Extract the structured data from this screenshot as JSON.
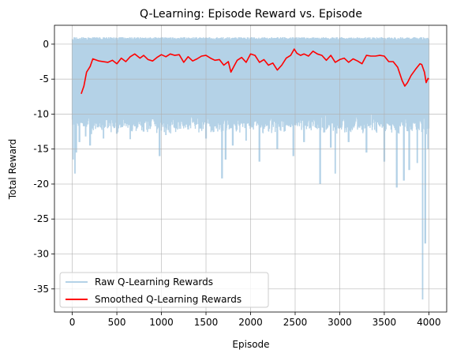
{
  "chart_data": {
    "type": "line",
    "title": "Q-Learning: Episode Reward vs. Episode",
    "xlabel": "Episode",
    "ylabel": "Total Reward",
    "xlim": [
      -200,
      4200
    ],
    "ylim": [
      -38.3,
      2.7
    ],
    "xticks": [
      0,
      500,
      1000,
      1500,
      2000,
      2500,
      3000,
      3500,
      4000
    ],
    "yticks": [
      0,
      -5,
      -10,
      -15,
      -20,
      -25,
      -30,
      -35
    ],
    "grid": true,
    "legend_position": "lower-left",
    "colors": {
      "raw": "#b4d2e7",
      "smoothed": "#ff0000",
      "grid": "#b0b0b0"
    },
    "series": [
      {
        "name": "Raw Q-Learning Rewards",
        "style": "band",
        "upper": 1.0,
        "lower_typical": -11.0,
        "spikes": [
          [
            10,
            -16.5
          ],
          [
            30,
            -18.5
          ],
          [
            45,
            -15.5
          ],
          [
            80,
            -14.0
          ],
          [
            150,
            -13.2
          ],
          [
            200,
            -14.5
          ],
          [
            350,
            -13.5
          ],
          [
            500,
            -12.8
          ],
          [
            650,
            -13.6
          ],
          [
            800,
            -12.5
          ],
          [
            980,
            -16.0
          ],
          [
            1050,
            -13.0
          ],
          [
            1300,
            -12.2
          ],
          [
            1500,
            -13.5
          ],
          [
            1680,
            -19.2
          ],
          [
            1720,
            -16.5
          ],
          [
            1800,
            -14.5
          ],
          [
            1950,
            -13.8
          ],
          [
            2100,
            -16.8
          ],
          [
            2300,
            -15.0
          ],
          [
            2480,
            -16.0
          ],
          [
            2600,
            -14.0
          ],
          [
            2780,
            -20.0
          ],
          [
            2900,
            -14.8
          ],
          [
            2950,
            -18.5
          ],
          [
            3100,
            -14.0
          ],
          [
            3300,
            -15.5
          ],
          [
            3500,
            -16.8
          ],
          [
            3640,
            -20.5
          ],
          [
            3720,
            -19.5
          ],
          [
            3780,
            -18.0
          ],
          [
            3870,
            -17.0
          ],
          [
            3930,
            -36.5
          ],
          [
            3960,
            -28.5
          ],
          [
            3990,
            -15.0
          ]
        ]
      },
      {
        "name": "Smoothed Q-Learning Rewards",
        "x": [
          100,
          130,
          160,
          200,
          230,
          300,
          400,
          450,
          500,
          550,
          600,
          650,
          700,
          760,
          800,
          850,
          900,
          950,
          1000,
          1050,
          1100,
          1150,
          1200,
          1250,
          1300,
          1350,
          1400,
          1450,
          1500,
          1550,
          1600,
          1650,
          1700,
          1750,
          1780,
          1820,
          1850,
          1900,
          1950,
          2000,
          2050,
          2100,
          2150,
          2200,
          2250,
          2300,
          2350,
          2400,
          2450,
          2490,
          2520,
          2560,
          2600,
          2650,
          2700,
          2750,
          2800,
          2850,
          2900,
          2950,
          3000,
          3050,
          3100,
          3150,
          3200,
          3250,
          3300,
          3350,
          3400,
          3450,
          3500,
          3550,
          3600,
          3650,
          3700,
          3730,
          3760,
          3800,
          3850,
          3900,
          3920,
          3950,
          3970,
          3990,
          4000
        ],
        "y": [
          -7.1,
          -6.0,
          -4.0,
          -3.2,
          -2.1,
          -2.4,
          -2.6,
          -2.3,
          -2.8,
          -2.0,
          -2.5,
          -1.8,
          -1.4,
          -2.0,
          -1.6,
          -2.2,
          -2.4,
          -1.9,
          -1.5,
          -1.8,
          -1.4,
          -1.6,
          -1.5,
          -2.6,
          -1.8,
          -2.4,
          -2.1,
          -1.7,
          -1.6,
          -2.0,
          -2.3,
          -2.2,
          -3.0,
          -2.5,
          -4.0,
          -3.0,
          -2.3,
          -1.9,
          -2.6,
          -1.4,
          -1.6,
          -2.6,
          -2.2,
          -3.0,
          -2.7,
          -3.7,
          -3.0,
          -2.0,
          -1.6,
          -0.7,
          -1.3,
          -1.6,
          -1.4,
          -1.7,
          -1.0,
          -1.4,
          -1.6,
          -2.3,
          -1.6,
          -2.6,
          -2.2,
          -2.0,
          -2.6,
          -2.1,
          -2.4,
          -2.8,
          -1.6,
          -1.7,
          -1.7,
          -1.6,
          -1.7,
          -2.5,
          -2.5,
          -3.3,
          -5.2,
          -6.0,
          -5.5,
          -4.5,
          -3.6,
          -2.8,
          -2.9,
          -4.0,
          -5.5,
          -4.9,
          -5.0
        ]
      }
    ]
  }
}
